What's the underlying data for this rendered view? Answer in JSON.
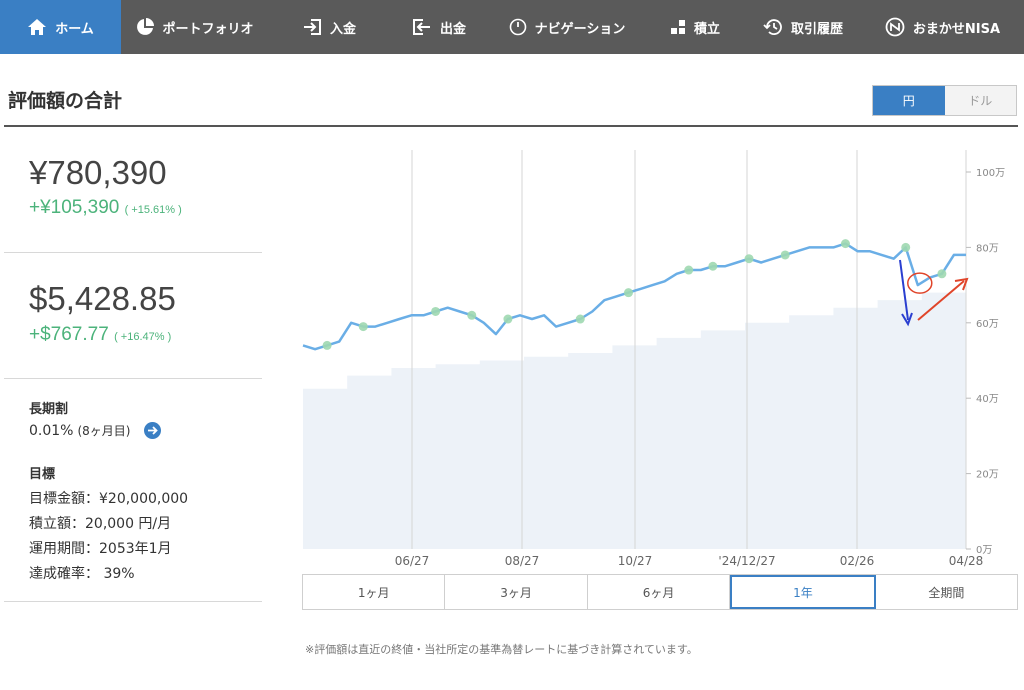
{
  "nav": {
    "items": [
      {
        "label": "ホーム",
        "icon": "home-icon",
        "active": true
      },
      {
        "label": "ポートフォリオ",
        "icon": "pie-chart-icon",
        "active": false
      },
      {
        "label": "入金",
        "icon": "deposit-icon",
        "active": false
      },
      {
        "label": "出金",
        "icon": "withdraw-icon",
        "active": false
      },
      {
        "label": "ナビゲーション",
        "icon": "navigation-icon",
        "active": false
      },
      {
        "label": "積立",
        "icon": "blocks-icon",
        "active": false
      },
      {
        "label": "取引履歴",
        "icon": "history-icon",
        "active": false
      },
      {
        "label": "おまかせNISA",
        "icon": "nisa-icon",
        "active": false
      }
    ]
  },
  "header": {
    "title": "評価額の合計",
    "currency_options": [
      "円",
      "ドル"
    ],
    "currency_selected": "円"
  },
  "summary": {
    "jpy_value": "¥780,390",
    "jpy_change": "+¥105,390",
    "jpy_change_pct": "( +15.61% )",
    "usd_value": "$5,428.85",
    "usd_change": "+$767.77",
    "usd_change_pct": "( +16.47% )"
  },
  "long_term": {
    "label": "長期割",
    "rate": "0.01%",
    "rate_sub": "(8ヶ月目)"
  },
  "goal": {
    "label": "目標",
    "lines": [
      "目標金額：¥20,000,000",
      "積立額：20,000 円/月",
      "運用期間：2053年1月",
      "達成確率： 39%"
    ]
  },
  "chart_data": {
    "type": "line",
    "title": "",
    "xlabel": "",
    "ylabel": "",
    "x_ticks": [
      "06/27",
      "08/27",
      "10/27",
      "'24/12/27",
      "02/26",
      "04/28"
    ],
    "y_ticks": [
      "0万",
      "20万",
      "40万",
      "60万",
      "80万",
      "100万"
    ],
    "ylim": [
      0,
      100
    ],
    "grid": "vertical",
    "colors": {
      "value_line": "#6aaee6",
      "contribution_area": "#edf2f8",
      "markers": "#9fd8b0"
    },
    "series": [
      {
        "key": "value",
        "values": [
          54,
          53,
          54,
          55,
          60,
          59,
          59,
          60,
          61,
          62,
          62,
          63,
          64,
          63,
          62,
          60,
          57,
          61,
          62,
          61,
          62,
          59,
          60,
          61,
          63,
          66,
          67,
          68,
          69,
          70,
          71,
          73,
          74,
          74,
          75,
          75,
          76,
          77,
          76,
          77,
          78,
          79,
          80,
          80,
          80,
          81,
          79,
          79,
          78,
          77,
          80,
          70,
          72,
          73,
          78,
          78
        ],
        "markers": [
          2,
          5,
          11,
          14,
          17,
          23,
          27,
          32,
          34,
          37,
          40,
          45,
          50,
          53
        ]
      },
      {
        "key": "contribution",
        "steps": [
          42.5,
          46,
          48,
          49,
          50,
          51,
          52,
          54,
          56,
          58,
          60,
          62,
          64,
          66,
          68
        ]
      }
    ]
  },
  "ranges": {
    "options": [
      "1ヶ月",
      "3ヶ月",
      "6ヶ月",
      "1年",
      "全期間"
    ],
    "selected": "1年"
  },
  "note": "※評価額は直近の終値・当社所定の基準為替レートに基づき計算されています。"
}
